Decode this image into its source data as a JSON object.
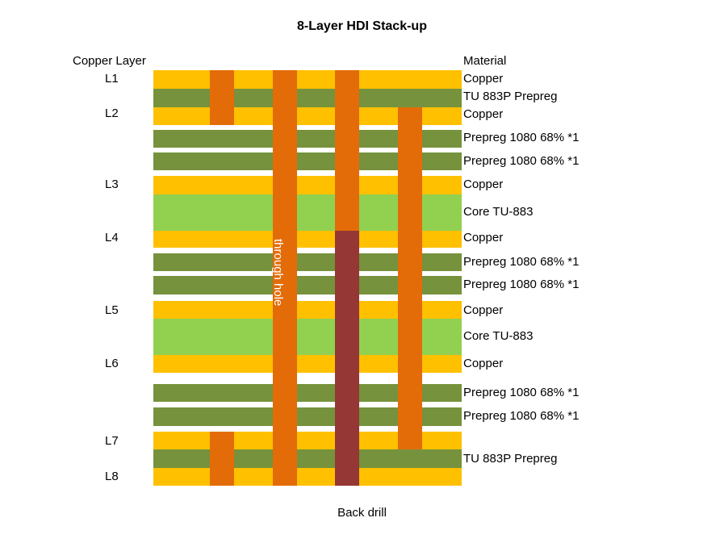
{
  "title": "8-Layer HDI Stack-up",
  "headers": {
    "copper_layer": "Copper Layer",
    "material": "Material"
  },
  "colors": {
    "copper": "#ffc000",
    "prepreg": "#76923c",
    "core": "#92d050",
    "via": "#e36c09",
    "back_drill": "#953735"
  },
  "layer_names": [
    "L1",
    "L2",
    "L3",
    "L4",
    "L5",
    "L6",
    "L7",
    "L8"
  ],
  "materials": [
    "Copper",
    "TU 883P Prepreg",
    "Copper",
    "Prepreg 1080 68% *1",
    "Prepreg 1080 68% *1",
    "Copper",
    "Core TU-883",
    "Copper",
    "Prepreg 1080 68% *1",
    "Prepreg 1080 68% *1",
    "Copper",
    "Core TU-883",
    "Copper",
    "Prepreg 1080 68% *1",
    "Prepreg 1080 68% *1",
    "TU 883P Prepreg"
  ],
  "labels": {
    "through_hole": "through hole",
    "back_drill": "Back drill"
  }
}
